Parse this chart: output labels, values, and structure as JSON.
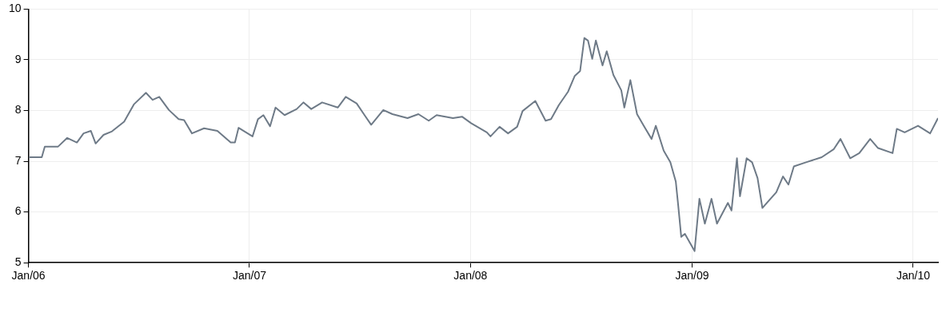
{
  "chart_data": {
    "type": "line",
    "grid": true,
    "xlim": [
      "2006-01-01",
      "2010-02-11"
    ],
    "xticks": [
      {
        "value": "2006-01-01",
        "label": "Jan/06"
      },
      {
        "value": "2007-01-01",
        "label": "Jan/07"
      },
      {
        "value": "2008-01-01",
        "label": "Jan/08"
      },
      {
        "value": "2009-01-01",
        "label": "Jan/09"
      },
      {
        "value": "2010-01-01",
        "label": "Jan/10"
      }
    ],
    "ylim": [
      5,
      10
    ],
    "yticks": [
      5,
      6,
      7,
      8,
      9,
      10
    ],
    "series": [
      {
        "color": "#6e7a87",
        "x": [
          "2006-01-02",
          "2006-01-23",
          "2006-01-28",
          "2006-02-19",
          "2006-03-06",
          "2006-03-22",
          "2006-04-02",
          "2006-04-14",
          "2006-04-22",
          "2006-05-05",
          "2006-05-19",
          "2006-06-08",
          "2006-06-24",
          "2006-07-14",
          "2006-07-25",
          "2006-08-05",
          "2006-08-21",
          "2006-09-06",
          "2006-09-15",
          "2006-09-28",
          "2006-10-18",
          "2006-11-09",
          "2006-12-01",
          "2006-12-08",
          "2006-12-14",
          "2007-01-06",
          "2007-01-15",
          "2007-01-24",
          "2007-02-04",
          "2007-02-13",
          "2007-02-28",
          "2007-03-20",
          "2007-03-31",
          "2007-04-13",
          "2007-05-01",
          "2007-05-27",
          "2007-06-09",
          "2007-06-27",
          "2007-07-10",
          "2007-07-21",
          "2007-08-10",
          "2007-08-25",
          "2007-09-19",
          "2007-10-07",
          "2007-10-24",
          "2007-11-06",
          "2007-12-03",
          "2007-12-18",
          "2008-01-02",
          "2008-01-28",
          "2008-02-03",
          "2008-02-18",
          "2008-03-03",
          "2008-03-18",
          "2008-03-27",
          "2008-04-17",
          "2008-05-04",
          "2008-05-13",
          "2008-05-26",
          "2008-06-10",
          "2008-06-21",
          "2008-06-30",
          "2008-07-07",
          "2008-07-13",
          "2008-07-20",
          "2008-07-26",
          "2008-08-06",
          "2008-08-13",
          "2008-08-24",
          "2008-09-06",
          "2008-09-11",
          "2008-09-21",
          "2008-10-02",
          "2008-10-13",
          "2008-10-26",
          "2008-11-02",
          "2008-11-15",
          "2008-11-26",
          "2008-12-05",
          "2008-12-09",
          "2008-12-14",
          "2008-12-20",
          "2009-01-05",
          "2009-01-13",
          "2009-01-22",
          "2009-02-02",
          "2009-02-11",
          "2009-03-01",
          "2009-03-07",
          "2009-03-16",
          "2009-03-21",
          "2009-04-01",
          "2009-04-10",
          "2009-04-19",
          "2009-04-27",
          "2009-05-20",
          "2009-05-31",
          "2009-06-09",
          "2009-06-18",
          "2009-07-08",
          "2009-08-03",
          "2009-08-23",
          "2009-09-03",
          "2009-09-19",
          "2009-10-04",
          "2009-10-22",
          "2009-11-04",
          "2009-11-28",
          "2009-12-05",
          "2009-12-18",
          "2010-01-09",
          "2010-01-29",
          "2010-02-11"
        ],
        "values": [
          7.08,
          7.08,
          7.29,
          7.29,
          7.46,
          7.37,
          7.55,
          7.6,
          7.35,
          7.52,
          7.59,
          7.78,
          8.12,
          8.35,
          8.21,
          8.27,
          8.01,
          7.83,
          7.81,
          7.55,
          7.65,
          7.6,
          7.37,
          7.37,
          7.66,
          7.49,
          7.83,
          7.91,
          7.69,
          8.06,
          7.91,
          8.03,
          8.16,
          8.03,
          8.16,
          8.06,
          8.27,
          8.14,
          7.91,
          7.72,
          8.01,
          7.93,
          7.85,
          7.93,
          7.8,
          7.91,
          7.85,
          7.88,
          7.75,
          7.57,
          7.49,
          7.68,
          7.55,
          7.68,
          7.99,
          8.19,
          7.8,
          7.83,
          8.11,
          8.37,
          8.68,
          8.78,
          9.43,
          9.38,
          9.02,
          9.38,
          8.89,
          9.17,
          8.7,
          8.4,
          8.06,
          8.6,
          7.93,
          7.7,
          7.44,
          7.7,
          7.21,
          6.98,
          6.6,
          6.13,
          5.51,
          5.57,
          5.23,
          6.26,
          5.77,
          6.26,
          5.77,
          6.18,
          6.03,
          7.06,
          6.31,
          7.06,
          6.98,
          6.67,
          6.08,
          6.39,
          6.7,
          6.54,
          6.9,
          6.98,
          7.08,
          7.24,
          7.44,
          7.06,
          7.16,
          7.44,
          7.26,
          7.16,
          7.64,
          7.57,
          7.7,
          7.55,
          7.85
        ]
      }
    ]
  }
}
